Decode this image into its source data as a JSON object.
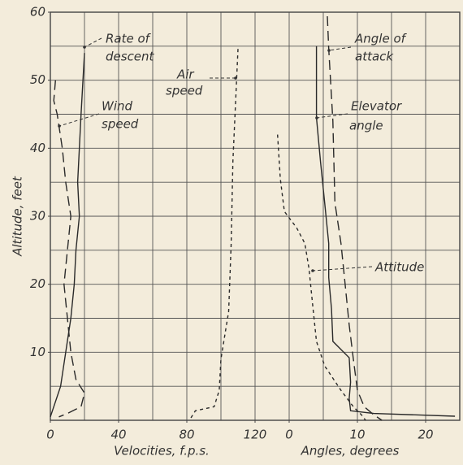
{
  "chart_data": {
    "type": "line",
    "ylabel": "Altitude, feet",
    "ylim": [
      0,
      60
    ],
    "yticks": [
      10,
      20,
      30,
      40,
      50,
      60
    ],
    "panels": [
      {
        "xlabel": "Velocities, f.p.s.",
        "xlim": [
          0,
          140
        ],
        "xticks": [
          0,
          40,
          80,
          120
        ],
        "series": [
          {
            "label": [
              "Rate of",
              "descent"
            ],
            "dash": "solid",
            "x": [
              20,
              18,
              17,
              16,
              17,
              15,
              14,
              12,
              9,
              6,
              2,
              0
            ],
            "y": [
              54,
              45,
              40,
              35,
              30,
              25,
              20,
              15,
              10,
              5,
              2,
              0.5
            ]
          },
          {
            "label": [
              "Wind",
              "speed"
            ],
            "dash": "long",
            "x": [
              3,
              2,
              4,
              7,
              9,
              12,
              10,
              8,
              10,
              12,
              15,
              20,
              18,
              10,
              5
            ],
            "y": [
              50,
              47,
              45,
              40,
              35,
              30,
              25,
              20,
              15,
              10,
              6,
              4,
              2,
              1,
              0.5
            ]
          },
          {
            "label": [
              "Air",
              "speed"
            ],
            "dash": "short",
            "x": [
              110,
              107,
              106,
              104.5,
              100,
              99,
              96,
              85,
              81.5
            ],
            "y": [
              54.6,
              38,
              26,
              16,
              9,
              4.4,
              2,
              1.4,
              0
            ]
          }
        ]
      },
      {
        "xlabel": "Angles, degrees",
        "xlim": [
          0,
          25
        ],
        "xticks": [
          0,
          10,
          20
        ],
        "series": [
          {
            "label": [
              "Angle of",
              "attack"
            ],
            "dash": "long",
            "x": [
              5.6,
              5.8,
              6.4,
              6.7,
              7.6,
              8.2,
              8.8,
              9.4,
              10,
              11,
              12.4,
              13.6
            ],
            "y": [
              59.4,
              54.6,
              44,
              32,
              26,
              20,
              14,
              9,
              4.4,
              2,
              0.8,
              0
            ]
          },
          {
            "label": [
              "Elevator",
              "angle"
            ],
            "dash": "solid",
            "x": [
              4,
              4,
              4.6,
              5.2,
              5.8,
              5.8,
              6.2,
              6.4,
              8.8,
              9,
              8.8,
              9,
              12.4,
              24.3
            ],
            "y": [
              55,
              44.5,
              38,
              32,
              26,
              21,
              16.4,
              11.6,
              9.2,
              5.6,
              3.2,
              1.4,
              1,
              0.6
            ]
          },
          {
            "label": [
              "Attitude"
            ],
            "dash": "short",
            "x": [
              -1.7,
              -1.3,
              -0.7,
              1.1,
              2.3,
              2.9,
              3.5,
              4,
              5.2,
              7.6,
              9.4,
              10.6,
              11.2
            ],
            "y": [
              42,
              35.5,
              30.7,
              28.3,
              26,
              22.3,
              16.4,
              11.6,
              8,
              4.4,
              2,
              0.8,
              0
            ]
          }
        ]
      }
    ]
  }
}
